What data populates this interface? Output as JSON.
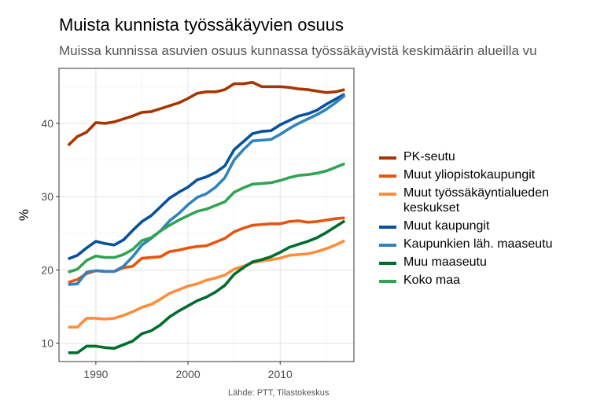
{
  "chart_data": {
    "type": "line",
    "title": "Muista kunnista työssäkäyvien osuus",
    "subtitle": "Muissa kunnissa asuvien osuus kunnassa työssäkäyvistä keskimäärin alueilla vu",
    "xlabel": "",
    "ylabel": "%",
    "caption": "Lähde: PTT, Tilastokeskus",
    "xlim": [
      1986,
      2018
    ],
    "ylim": [
      7.5,
      47.5
    ],
    "x_ticks": [
      1990,
      2000,
      2010
    ],
    "y_ticks": [
      10,
      20,
      30,
      40
    ],
    "grid": true,
    "legend_position": "right",
    "x": [
      1987,
      1988,
      1989,
      1990,
      1991,
      1992,
      1993,
      1994,
      1995,
      1996,
      1997,
      1998,
      1999,
      2000,
      2001,
      2002,
      2003,
      2004,
      2005,
      2006,
      2007,
      2008,
      2009,
      2010,
      2011,
      2012,
      2013,
      2014,
      2015,
      2016,
      2017
    ],
    "series": [
      {
        "name": "PK-seutu",
        "color": "#a63603",
        "values": [
          37.0,
          38.2,
          38.8,
          40.1,
          40.0,
          40.2,
          40.6,
          41.0,
          41.5,
          41.6,
          42.0,
          42.4,
          42.8,
          43.4,
          44.1,
          44.3,
          44.3,
          44.6,
          45.4,
          45.4,
          45.6,
          45.0,
          45.0,
          45.0,
          44.9,
          44.7,
          44.6,
          44.4,
          44.2,
          44.3,
          44.6
        ]
      },
      {
        "name": "Muut yliopistokaupungit",
        "color": "#e6550d",
        "values": [
          18.3,
          18.7,
          19.5,
          19.9,
          19.8,
          19.8,
          20.3,
          20.5,
          21.6,
          21.7,
          21.8,
          22.5,
          22.7,
          23.0,
          23.2,
          23.3,
          23.8,
          24.3,
          25.2,
          25.7,
          26.1,
          26.2,
          26.3,
          26.3,
          26.6,
          26.7,
          26.5,
          26.6,
          26.8,
          27.0,
          27.1
        ]
      },
      {
        "name": "Muut työssäkäyntialueden keskukset",
        "color": "#fd8d3c",
        "values": [
          12.2,
          12.2,
          13.4,
          13.4,
          13.3,
          13.4,
          13.8,
          14.3,
          14.9,
          15.3,
          16.0,
          16.8,
          17.3,
          17.8,
          18.1,
          18.6,
          18.9,
          19.3,
          20.1,
          20.5,
          21.0,
          21.2,
          21.4,
          21.6,
          22.0,
          22.1,
          22.2,
          22.5,
          22.9,
          23.4,
          24.0
        ]
      },
      {
        "name": "Muut kaupungit",
        "color": "#08519c",
        "values": [
          21.5,
          22.0,
          23.0,
          23.9,
          23.6,
          23.4,
          24.1,
          25.4,
          26.6,
          27.4,
          28.6,
          29.8,
          30.6,
          31.3,
          32.3,
          32.7,
          33.3,
          34.2,
          36.4,
          37.5,
          38.6,
          38.9,
          39.0,
          39.8,
          40.4,
          41.0,
          41.3,
          41.8,
          42.6,
          43.3,
          44.0
        ]
      },
      {
        "name": "Kaupunkien läh. maaseutu",
        "color": "#3182bd",
        "values": [
          18.0,
          18.1,
          19.7,
          19.9,
          19.8,
          19.8,
          20.5,
          21.8,
          23.4,
          24.3,
          25.3,
          26.7,
          27.7,
          28.9,
          29.9,
          30.4,
          31.3,
          32.6,
          35.0,
          36.4,
          37.6,
          37.7,
          37.8,
          38.5,
          39.3,
          40.0,
          40.6,
          41.2,
          41.9,
          42.8,
          43.8
        ]
      },
      {
        "name": "Muu maaseutu",
        "color": "#006d2c",
        "values": [
          8.7,
          8.7,
          9.6,
          9.6,
          9.4,
          9.3,
          9.8,
          10.3,
          11.3,
          11.7,
          12.5,
          13.6,
          14.4,
          15.1,
          15.8,
          16.3,
          17.0,
          17.9,
          19.4,
          20.3,
          21.1,
          21.4,
          21.8,
          22.4,
          23.1,
          23.5,
          23.9,
          24.4,
          25.1,
          25.9,
          26.7
        ]
      },
      {
        "name": "Koko maa",
        "color": "#31a354",
        "values": [
          19.7,
          20.1,
          21.3,
          21.9,
          21.7,
          21.7,
          22.1,
          22.8,
          24.0,
          24.4,
          25.3,
          26.1,
          26.8,
          27.4,
          28.0,
          28.3,
          28.8,
          29.3,
          30.6,
          31.2,
          31.7,
          31.8,
          31.9,
          32.2,
          32.6,
          32.9,
          33.0,
          33.2,
          33.5,
          34.0,
          34.5
        ]
      }
    ]
  }
}
